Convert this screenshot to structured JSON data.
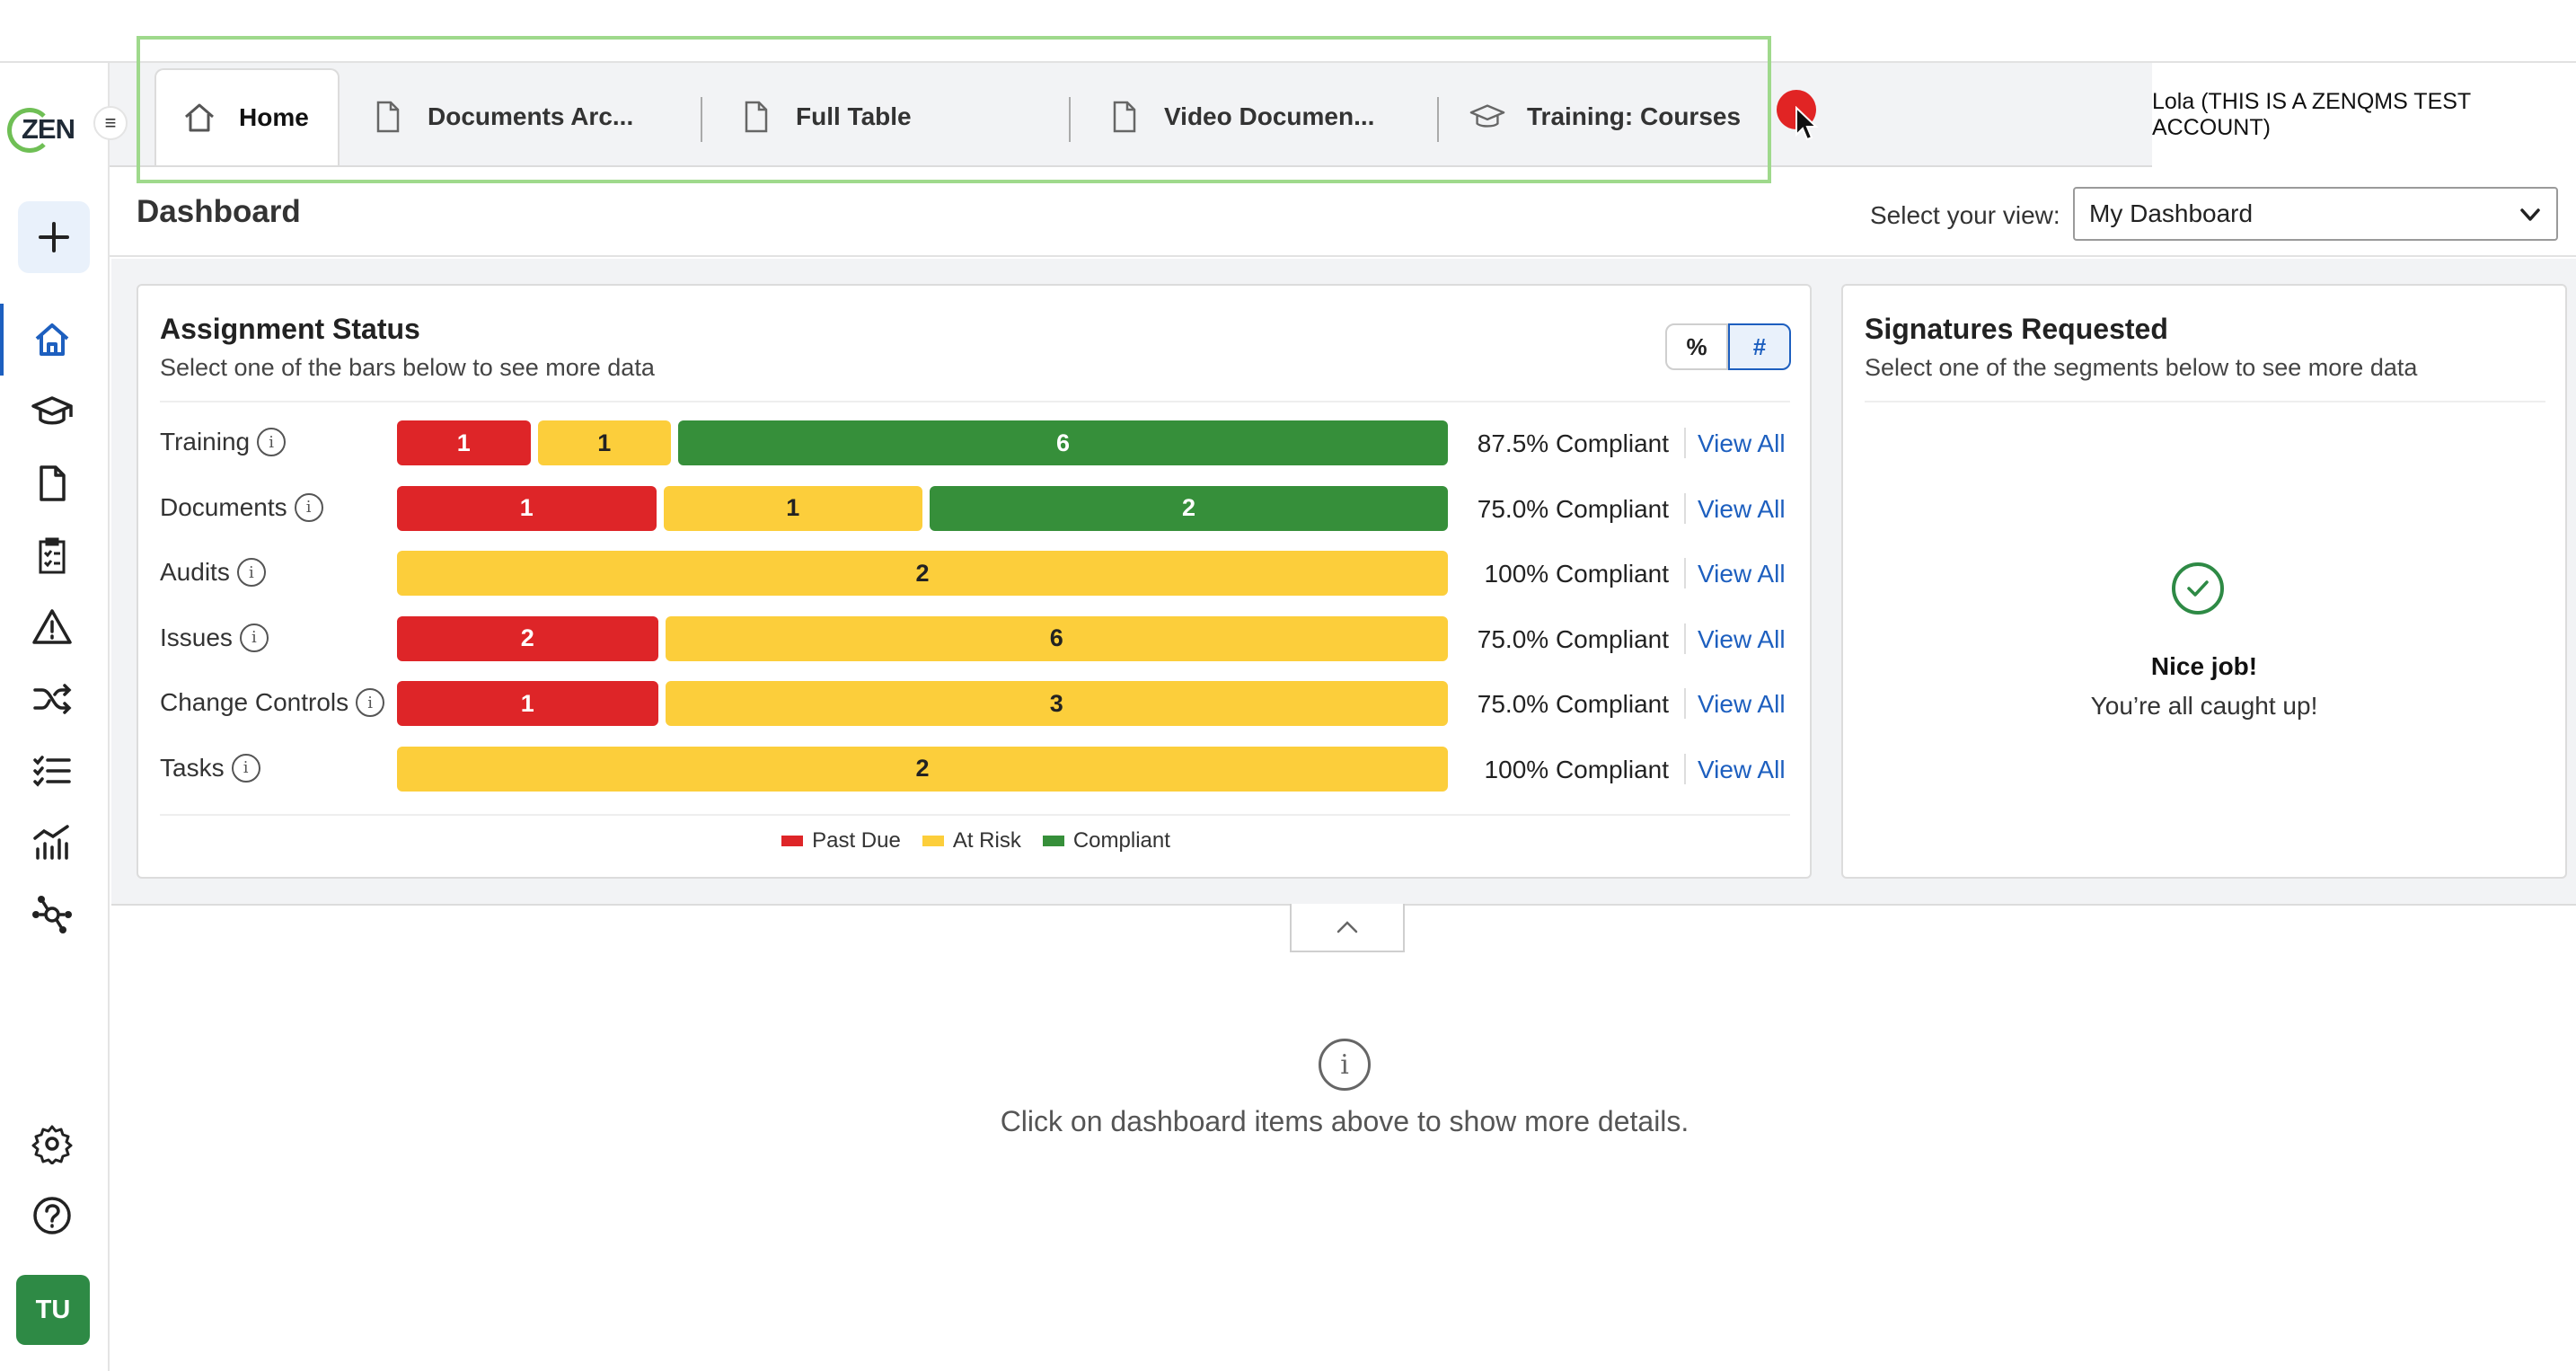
{
  "app": {
    "logo_text": "ZEN",
    "user_label": "Lola (THIS IS A ZENQMS TEST ACCOUNT)",
    "avatar_initials": "TU"
  },
  "sidebar": {
    "items": [
      {
        "name": "home",
        "icon": "home-icon",
        "active": true
      },
      {
        "name": "training",
        "icon": "graduation-cap-icon"
      },
      {
        "name": "documents",
        "icon": "document-icon"
      },
      {
        "name": "audits",
        "icon": "clipboard-checklist-icon"
      },
      {
        "name": "issues",
        "icon": "warning-triangle-icon"
      },
      {
        "name": "change-controls",
        "icon": "shuffle-icon"
      },
      {
        "name": "tasks",
        "icon": "task-list-icon"
      },
      {
        "name": "reports",
        "icon": "chart-icon"
      },
      {
        "name": "network",
        "icon": "network-hub-icon"
      }
    ],
    "bottom": [
      {
        "name": "settings",
        "icon": "gear-icon"
      },
      {
        "name": "help",
        "icon": "help-circle-icon"
      }
    ]
  },
  "tabs": [
    {
      "label": "Home",
      "icon": "home-icon",
      "active": true
    },
    {
      "label": "Documents Arc...",
      "icon": "document-icon"
    },
    {
      "label": "Full Table",
      "icon": "document-icon"
    },
    {
      "label": "Video Documen...",
      "icon": "document-icon"
    },
    {
      "label": "Training: Courses",
      "icon": "graduation-cap-icon"
    }
  ],
  "header": {
    "title": "Dashboard",
    "view_label": "Select your view:",
    "view_value": "My Dashboard"
  },
  "assignment_status": {
    "title": "Assignment Status",
    "subtitle": "Select one of the bars below to see more data",
    "toggle_percent": "%",
    "toggle_count": "#",
    "view_all_label": "View All",
    "rows": [
      {
        "label": "Training",
        "past_due": 1,
        "at_risk": 1,
        "compliant": 6,
        "percent": "87.5% Compliant"
      },
      {
        "label": "Documents",
        "past_due": 1,
        "at_risk": 1,
        "compliant": 2,
        "percent": "75.0% Compliant"
      },
      {
        "label": "Audits",
        "past_due": 0,
        "at_risk": 2,
        "compliant": 0,
        "percent": "100% Compliant"
      },
      {
        "label": "Issues",
        "past_due": 2,
        "at_risk": 6,
        "compliant": 0,
        "percent": "75.0% Compliant"
      },
      {
        "label": "Change Controls",
        "past_due": 1,
        "at_risk": 3,
        "compliant": 0,
        "percent": "75.0% Compliant"
      },
      {
        "label": "Tasks",
        "past_due": 0,
        "at_risk": 2,
        "compliant": 0,
        "percent": "100% Compliant"
      }
    ],
    "legend": [
      {
        "label": "Past Due",
        "color": "#de2528"
      },
      {
        "label": "At Risk",
        "color": "#fcce3b"
      },
      {
        "label": "Compliant",
        "color": "#368f3a"
      }
    ]
  },
  "signatures": {
    "title": "Signatures Requested",
    "subtitle": "Select one of the segments below to see more data",
    "empty_title": "Nice job!",
    "empty_message": "You’re all caught up!"
  },
  "details": {
    "message": "Click on dashboard items above to show more details."
  },
  "colors": {
    "accent": "#1d5fbf",
    "past_due": "#de2528",
    "at_risk": "#fcce3b",
    "compliant": "#368f3a",
    "brand_green": "#6fbf55"
  }
}
